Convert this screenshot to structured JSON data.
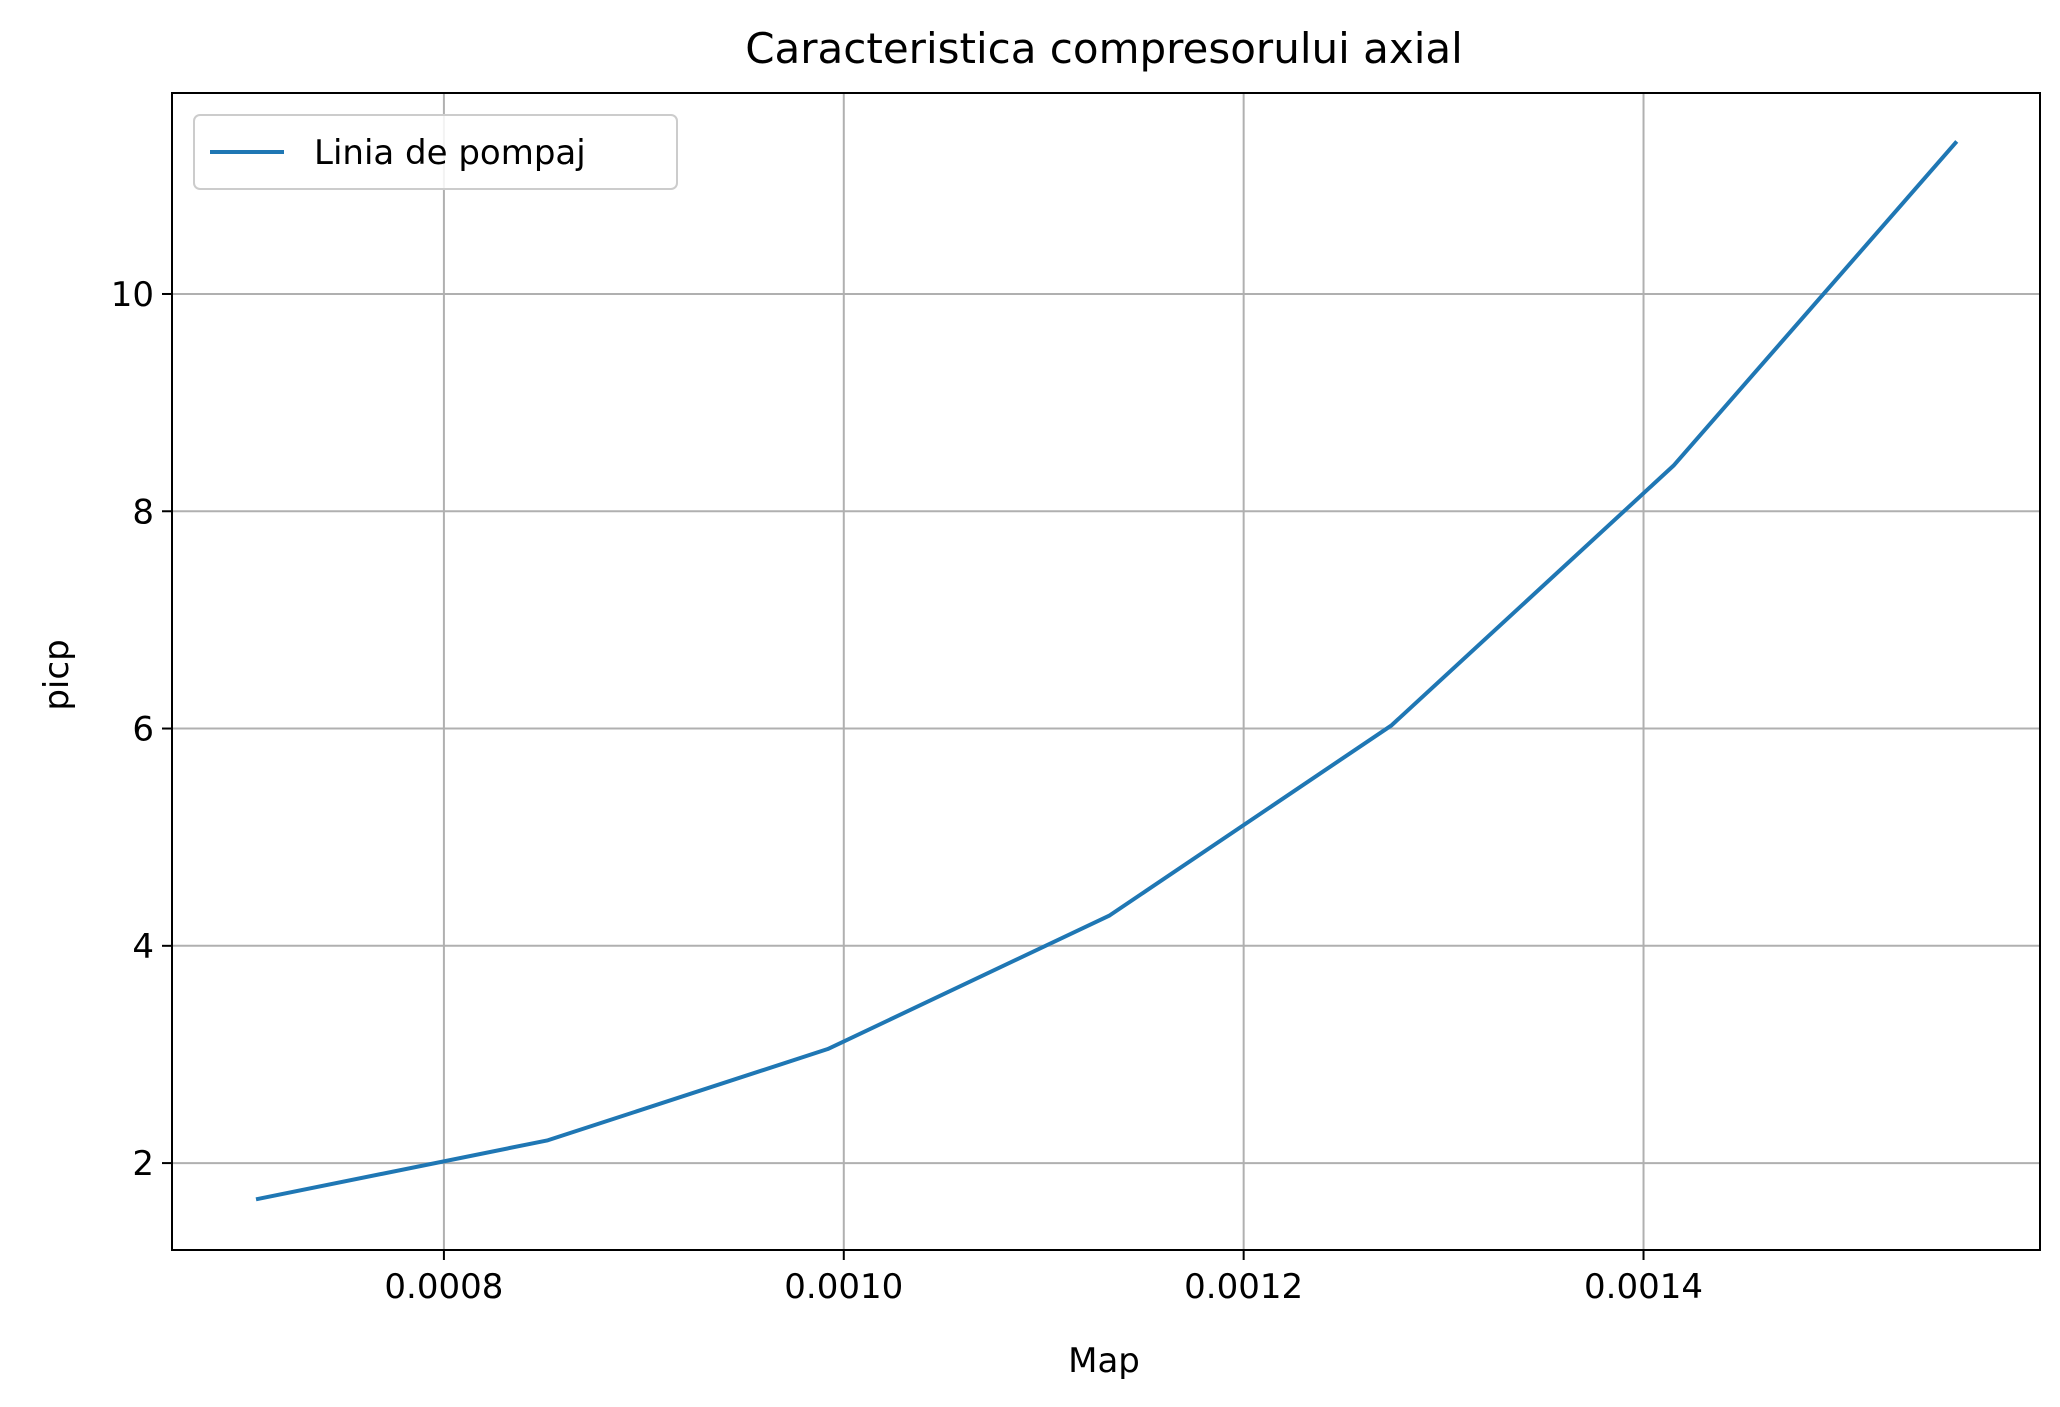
{
  "chart_data": {
    "type": "line",
    "title": "Caracteristica compresorului axial",
    "xlabel": "Map",
    "ylabel": "picp",
    "xlim": [
      0.000664,
      0.0015983
    ],
    "ylim": [
      1.2,
      11.85
    ],
    "x_ticks": [
      0.0008,
      0.001,
      0.0012,
      0.0014
    ],
    "x_tick_labels": [
      "0.0008",
      "0.0010",
      "0.0012",
      "0.0014"
    ],
    "y_ticks": [
      2,
      4,
      6,
      8,
      10
    ],
    "y_tick_labels": [
      "2",
      "4",
      "6",
      "8",
      "10"
    ],
    "grid": true,
    "legend_position": "upper left",
    "series": [
      {
        "name": "Linia de pompaj",
        "color": "#1f77b4",
        "x": [
          0.000707,
          0.000852,
          0.000992,
          0.001133,
          0.001274,
          0.001415,
          0.001556
        ],
        "y": [
          1.67,
          2.21,
          3.05,
          4.28,
          6.03,
          8.42,
          11.39
        ]
      }
    ]
  }
}
